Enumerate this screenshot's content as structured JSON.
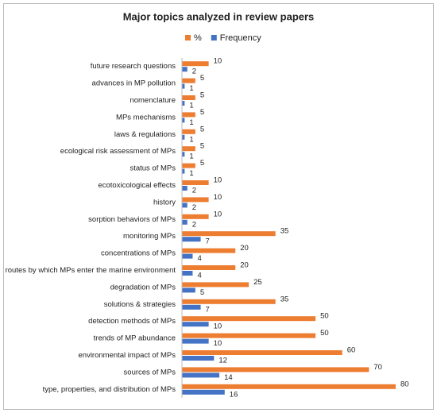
{
  "chart_data": {
    "type": "bar",
    "orientation": "horizontal",
    "title": "Major topics analyzed in review papers",
    "categories": [
      "future research questions",
      "advances in MP pollution",
      "nomenclature",
      "MPs mechanisms",
      "laws & regulations",
      "ecological risk assessment of MPs",
      "status of MPs",
      "ecotoxicological effects",
      "history",
      "sorption behaviors of MPs",
      "monitoring MPs",
      "concentrations of MPs",
      "routes by which MPs enter the marine environment",
      "degradation of MPs",
      "solutions & strategies",
      "detection methods of MPs",
      "trends of MP abundance",
      "environmental impact of MPs",
      "sources of MPs",
      "type, properties, and distribution of MPs"
    ],
    "series": [
      {
        "name": "%",
        "color": "#ED7D31",
        "values": [
          10,
          5,
          5,
          5,
          5,
          5,
          5,
          10,
          10,
          10,
          35,
          20,
          20,
          25,
          35,
          50,
          50,
          60,
          70,
          80
        ]
      },
      {
        "name": "Frequency",
        "color": "#4472C4",
        "values": [
          2,
          1,
          1,
          1,
          1,
          1,
          1,
          2,
          2,
          2,
          7,
          4,
          4,
          5,
          7,
          10,
          10,
          12,
          14,
          16
        ]
      }
    ],
    "legend": "top"
  }
}
